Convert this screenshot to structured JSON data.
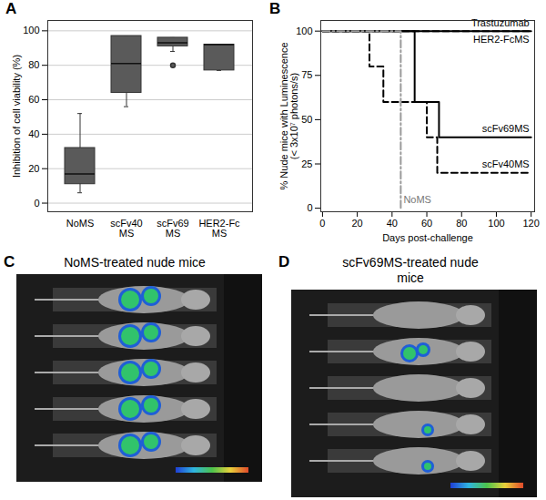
{
  "chart_data": [
    {
      "panel": "A",
      "type": "box",
      "categories": [
        "NoMS",
        "scFv40\nMS",
        "scFv69\nMS",
        "HER2-Fc\nMS"
      ],
      "min": [
        6,
        56,
        88,
        77
      ],
      "q1": [
        11,
        64,
        91,
        77
      ],
      "median": [
        17,
        81,
        93,
        92
      ],
      "q3": [
        32,
        97,
        96,
        92
      ],
      "max": [
        52,
        97,
        96,
        92
      ],
      "outliers": [
        [],
        [],
        [
          80
        ],
        []
      ],
      "color": "#5a5a5a",
      "y_label": "Inhibition of cell viability (%)",
      "ylim": [
        -5,
        106
      ],
      "yticks": [
        0,
        20,
        40,
        60,
        80,
        100
      ],
      "grid": true
    },
    {
      "panel": "B",
      "type": "line",
      "x_label": "Days post-challenge",
      "y_label": "% Nude mice with Luminescence\n(< 3x10⁷ photons/s)",
      "xlim": [
        -1,
        122
      ],
      "xticks": [
        0,
        20,
        40,
        60,
        80,
        100,
        120
      ],
      "ylim": [
        -2,
        106
      ],
      "yticks": [
        0,
        25,
        50,
        75,
        100
      ],
      "series": [
        {
          "name": "Trastuzumab",
          "color": "#000000",
          "line_style": "dashed",
          "x": [
            0,
            120
          ],
          "values": [
            100,
            100
          ]
        },
        {
          "name": "HER2-FcMS",
          "color": "#000000",
          "line_style": "solid",
          "x": [
            0,
            120
          ],
          "values": [
            100,
            100
          ]
        },
        {
          "name": "scFv69MS",
          "color": "#000000",
          "line_style": "solid",
          "x": [
            0,
            53,
            67,
            120
          ],
          "values": [
            100,
            60,
            40,
            40
          ]
        },
        {
          "name": "scFv40MS",
          "color": "#000000",
          "line_style": "dashed",
          "x": [
            0,
            27,
            35,
            60,
            66,
            120
          ],
          "values": [
            100,
            80,
            60,
            40,
            20,
            20
          ]
        },
        {
          "name": "NoMS",
          "color": "#9a9a9a",
          "line_style": "dashdot",
          "x": [
            0,
            45
          ],
          "values": [
            100,
            0
          ]
        }
      ]
    },
    {
      "panel": "C",
      "type": "image",
      "title": "NoMS-treated nude mice"
    },
    {
      "panel": "D",
      "type": "image",
      "title": "scFv69MS-treated nude mice"
    }
  ]
}
